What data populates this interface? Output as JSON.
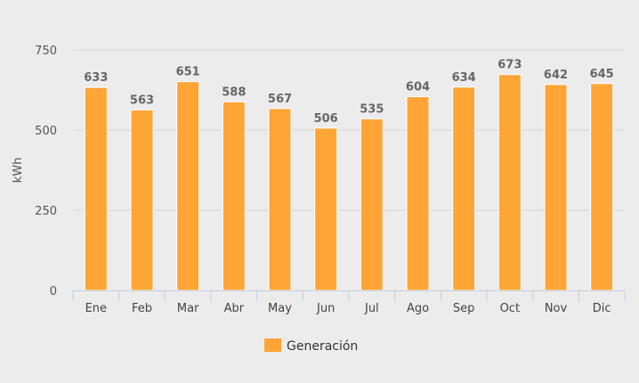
{
  "chart_data": {
    "type": "bar",
    "categories": [
      "Ene",
      "Feb",
      "Mar",
      "Abr",
      "May",
      "Jun",
      "Jul",
      "Ago",
      "Sep",
      "Oct",
      "Nov",
      "Dic"
    ],
    "series": [
      {
        "name": "Generación",
        "values": [
          633,
          563,
          651,
          588,
          567,
          506,
          535,
          604,
          634,
          673,
          642,
          645
        ],
        "color": "#ffa536"
      }
    ],
    "ylabel": "kWh",
    "xlabel": "",
    "ylim": [
      0,
      750
    ],
    "yticks": [
      0,
      250,
      500,
      750
    ],
    "grid": true,
    "legend": "bottom-center",
    "data_labels": true
  }
}
